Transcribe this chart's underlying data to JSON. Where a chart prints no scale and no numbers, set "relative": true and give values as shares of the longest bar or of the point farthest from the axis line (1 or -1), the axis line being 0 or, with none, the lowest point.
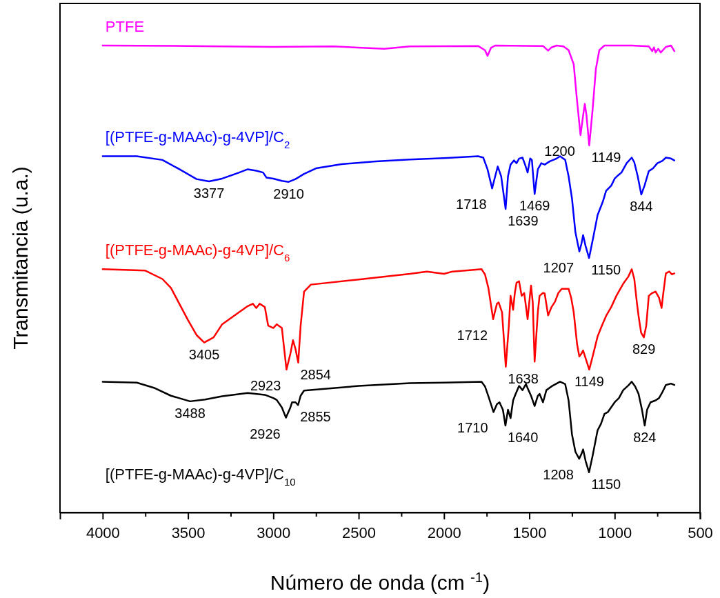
{
  "chart_data": {
    "type": "line",
    "relative": true,
    "xlabel": "Número de onda (cm $^{-1}$)",
    "ylabel": "Transmitancia (u.a.)",
    "xlim": [
      4250,
      500
    ],
    "xticks": [
      4000,
      {
        "value": 3750,
        "label": null
      },
      3500,
      {
        "value": 3250,
        "label": null
      },
      3000,
      {
        "value": 2750,
        "label": null
      },
      2500,
      {
        "value": 2250,
        "label": null
      },
      2000,
      {
        "value": 1750,
        "label": null
      },
      1500,
      {
        "value": 1250,
        "label": null
      },
      1000,
      {
        "value": 750,
        "label": null
      },
      500
    ],
    "tick_labels": "x",
    "legend": false,
    "grid": false,
    "marker": "none",
    "line_style": "solid",
    "series": [
      {
        "name": "PTFE",
        "color": "#ff00ff",
        "x": [
          4000,
          3500,
          3000,
          2650,
          2350,
          2200,
          1800,
          1760,
          1745,
          1725,
          1700,
          1420,
          1390,
          1370,
          1340,
          1300,
          1270,
          1240,
          1220,
          1200,
          1185,
          1175,
          1165,
          1149,
          1130,
          1110,
          1090,
          1060,
          900,
          800,
          780,
          770,
          760,
          745,
          730,
          700,
          670,
          650
        ],
        "values": [
          1.0,
          0.999,
          0.997,
          0.998,
          0.993,
          0.998,
          0.999,
          0.99,
          0.978,
          0.995,
          1.0,
          0.999,
          0.989,
          0.996,
          1.0,
          0.998,
          0.99,
          0.96,
          0.88,
          0.808,
          0.85,
          0.875,
          0.85,
          0.786,
          0.86,
          0.95,
          0.99,
          1.0,
          1.0,
          0.998,
          0.988,
          0.996,
          0.985,
          0.993,
          0.985,
          0.997,
          1.0,
          0.988
        ]
      },
      {
        "name": "[(PTFE-g-MAAc)-g-4VP]/C$_{2}$",
        "color": "#0000ff",
        "x": [
          4000,
          3800,
          3650,
          3550,
          3450,
          3377,
          3300,
          3200,
          3150,
          3100,
          3060,
          3040,
          3000,
          2950,
          2910,
          2870,
          2820,
          2750,
          2600,
          2400,
          2200,
          2000,
          1800,
          1770,
          1745,
          1718,
          1700,
          1685,
          1665,
          1639,
          1625,
          1610,
          1590,
          1575,
          1560,
          1540,
          1525,
          1510,
          1495,
          1485,
          1469,
          1450,
          1430,
          1410,
          1380,
          1340,
          1320,
          1290,
          1270,
          1250,
          1230,
          1207,
          1195,
          1185,
          1170,
          1150,
          1125,
          1100,
          1070,
          1050,
          1020,
          1000,
          980,
          960,
          930,
          900,
          885,
          865,
          844,
          825,
          800,
          775,
          750,
          720,
          700,
          670,
          650
        ],
        "values": [
          0.763,
          0.763,
          0.755,
          0.735,
          0.714,
          0.709,
          0.715,
          0.728,
          0.735,
          0.732,
          0.728,
          0.717,
          0.715,
          0.71,
          0.708,
          0.714,
          0.725,
          0.737,
          0.746,
          0.752,
          0.756,
          0.759,
          0.763,
          0.76,
          0.735,
          0.694,
          0.72,
          0.741,
          0.72,
          0.65,
          0.72,
          0.745,
          0.754,
          0.748,
          0.758,
          0.76,
          0.745,
          0.728,
          0.758,
          0.755,
          0.682,
          0.735,
          0.748,
          0.745,
          0.752,
          0.758,
          0.763,
          0.755,
          0.72,
          0.672,
          0.6,
          0.559,
          0.575,
          0.594,
          0.57,
          0.545,
          0.59,
          0.637,
          0.665,
          0.689,
          0.7,
          0.715,
          0.722,
          0.728,
          0.748,
          0.76,
          0.75,
          0.72,
          0.681,
          0.7,
          0.731,
          0.737,
          0.748,
          0.753,
          0.76,
          0.758,
          0.754
        ]
      },
      {
        "name": "[(PTFE-g-MAAc)-g-4VP]/C$_{6}$",
        "color": "#ff0000",
        "x": [
          4000,
          3750,
          3650,
          3600,
          3500,
          3450,
          3405,
          3350,
          3300,
          3200,
          3150,
          3120,
          3100,
          3080,
          3050,
          3030,
          3000,
          2980,
          2950,
          2923,
          2900,
          2885,
          2870,
          2854,
          2840,
          2820,
          2780,
          2500,
          2200,
          2100,
          2000,
          1950,
          1850,
          1780,
          1760,
          1740,
          1712,
          1690,
          1680,
          1660,
          1638,
          1620,
          1610,
          1595,
          1585,
          1575,
          1560,
          1545,
          1530,
          1510,
          1495,
          1490,
          1480,
          1469,
          1450,
          1440,
          1420,
          1410,
          1390,
          1370,
          1350,
          1330,
          1310,
          1270,
          1255,
          1240,
          1220,
          1207,
          1195,
          1185,
          1170,
          1149,
          1125,
          1100,
          1075,
          1050,
          1020,
          990,
          950,
          920,
          900,
          885,
          870,
          860,
          845,
          829,
          815,
          800,
          780,
          760,
          740,
          725,
          715,
          700,
          680,
          665,
          650
        ],
        "values": [
          0.521,
          0.518,
          0.5,
          0.481,
          0.412,
          0.38,
          0.364,
          0.375,
          0.403,
          0.429,
          0.442,
          0.447,
          0.438,
          0.447,
          0.44,
          0.4,
          0.395,
          0.403,
          0.395,
          0.306,
          0.34,
          0.369,
          0.35,
          0.321,
          0.4,
          0.473,
          0.488,
          0.499,
          0.511,
          0.516,
          0.511,
          0.516,
          0.519,
          0.521,
          0.51,
          0.481,
          0.414,
          0.447,
          0.45,
          0.429,
          0.312,
          0.4,
          0.464,
          0.434,
          0.47,
          0.492,
          0.495,
          0.464,
          0.47,
          0.414,
          0.47,
          0.486,
          0.45,
          0.323,
          0.43,
          0.464,
          0.47,
          0.469,
          0.422,
          0.44,
          0.451,
          0.47,
          0.479,
          0.479,
          0.46,
          0.429,
          0.36,
          0.334,
          0.34,
          0.347,
          0.33,
          0.306,
          0.34,
          0.377,
          0.4,
          0.421,
          0.44,
          0.464,
          0.49,
          0.505,
          0.521,
          0.5,
          0.45,
          0.421,
          0.385,
          0.375,
          0.4,
          0.464,
          0.47,
          0.473,
          0.46,
          0.438,
          0.47,
          0.512,
          0.516,
          0.51,
          0.512
        ]
      },
      {
        "name": "[(PTFE-g-MAAc)-g-4VP]/C$_{10}$",
        "color": "#000000",
        "x": [
          4000,
          3800,
          3700,
          3600,
          3488,
          3400,
          3300,
          3150,
          3050,
          3000,
          2980,
          2950,
          2926,
          2900,
          2890,
          2870,
          2855,
          2840,
          2820,
          2500,
          2200,
          2000,
          1780,
          1760,
          1740,
          1710,
          1690,
          1675,
          1655,
          1640,
          1625,
          1610,
          1595,
          1580,
          1560,
          1540,
          1520,
          1505,
          1490,
          1469,
          1450,
          1440,
          1420,
          1400,
          1370,
          1320,
          1290,
          1270,
          1250,
          1230,
          1208,
          1195,
          1185,
          1170,
          1150,
          1130,
          1100,
          1080,
          1060,
          1040,
          1000,
          975,
          950,
          920,
          900,
          880,
          860,
          840,
          824,
          810,
          790,
          760,
          740,
          720,
          700,
          670,
          650
        ],
        "values": [
          0.28,
          0.278,
          0.267,
          0.25,
          0.238,
          0.242,
          0.249,
          0.256,
          0.252,
          0.245,
          0.241,
          0.225,
          0.203,
          0.225,
          0.236,
          0.236,
          0.23,
          0.25,
          0.261,
          0.271,
          0.277,
          0.278,
          0.28,
          0.27,
          0.249,
          0.215,
          0.232,
          0.236,
          0.22,
          0.186,
          0.22,
          0.202,
          0.24,
          0.254,
          0.271,
          0.262,
          0.275,
          0.262,
          0.25,
          0.228,
          0.25,
          0.254,
          0.236,
          0.262,
          0.27,
          0.28,
          0.275,
          0.24,
          0.167,
          0.13,
          0.115,
          0.125,
          0.135,
          0.11,
          0.086,
          0.12,
          0.176,
          0.19,
          0.211,
          0.215,
          0.236,
          0.245,
          0.262,
          0.272,
          0.28,
          0.27,
          0.254,
          0.22,
          0.186,
          0.22,
          0.236,
          0.24,
          0.245,
          0.258,
          0.273,
          0.276,
          0.273
        ]
      }
    ],
    "annotations": [
      {
        "text": "1200",
        "x": 1200,
        "y": 0.808
      },
      {
        "text": "1149",
        "x": 1149,
        "y": 0.786
      },
      {
        "text": "3377",
        "x": 3377,
        "y": 0.709
      },
      {
        "text": "2910",
        "x": 2910,
        "y": 0.708
      },
      {
        "text": "1718",
        "x": 1718,
        "y": 0.694
      },
      {
        "text": "1639",
        "x": 1639,
        "y": 0.65
      },
      {
        "text": "1469",
        "x": 1469,
        "y": 0.682
      },
      {
        "text": "1207",
        "x": 1207,
        "y": 0.559
      },
      {
        "text": "1150",
        "x": 1150,
        "y": 0.545
      },
      {
        "text": "844",
        "x": 844,
        "y": 0.681
      },
      {
        "text": "3405",
        "x": 3405,
        "y": 0.364
      },
      {
        "text": "2923",
        "x": 2923,
        "y": 0.306
      },
      {
        "text": "2854",
        "x": 2854,
        "y": 0.321
      },
      {
        "text": "1712",
        "x": 1712,
        "y": 0.414
      },
      {
        "text": "1638",
        "x": 1638,
        "y": 0.312
      },
      {
        "text": "1149",
        "x": 1149,
        "y": 0.306
      },
      {
        "text": "829",
        "x": 829,
        "y": 0.375
      },
      {
        "text": "3488",
        "x": 3488,
        "y": 0.238
      },
      {
        "text": "2926",
        "x": 2926,
        "y": 0.203
      },
      {
        "text": "2855",
        "x": 2855,
        "y": 0.23
      },
      {
        "text": "1710",
        "x": 1710,
        "y": 0.215
      },
      {
        "text": "1640",
        "x": 1640,
        "y": 0.186
      },
      {
        "text": "1208",
        "x": 1208,
        "y": 0.115
      },
      {
        "text": "1150",
        "x": 1150,
        "y": 0.086
      },
      {
        "text": "824",
        "x": 824,
        "y": 0.186
      }
    ]
  }
}
